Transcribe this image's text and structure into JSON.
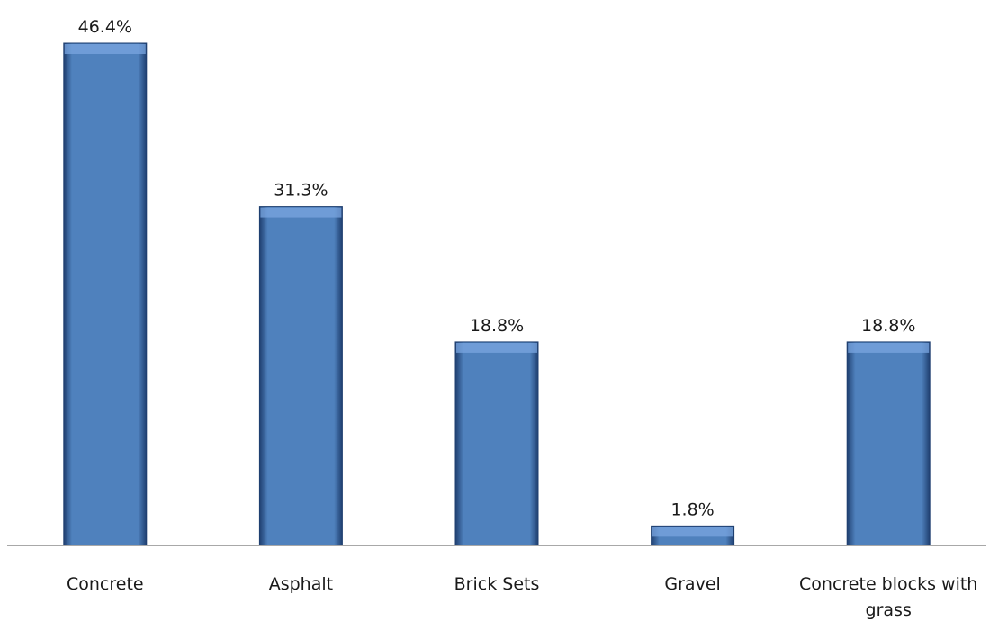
{
  "chart_data": {
    "type": "bar",
    "categories": [
      "Concrete",
      "Asphalt",
      "Brick Sets",
      "Gravel",
      "Concrete blocks with grass"
    ],
    "category_lines": [
      [
        "Concrete"
      ],
      [
        "Asphalt"
      ],
      [
        "Brick Sets"
      ],
      [
        "Gravel"
      ],
      [
        "Concrete blocks with",
        "grass"
      ]
    ],
    "values": [
      46.4,
      31.3,
      18.8,
      1.8,
      18.8
    ],
    "value_labels": [
      "46.4%",
      "31.3%",
      "18.8%",
      "1.8%",
      "18.8%"
    ],
    "title": "",
    "xlabel": "",
    "ylabel": "",
    "ylim": [
      0,
      46.4
    ],
    "grid": false,
    "legend": "none",
    "colors": {
      "bar": "#4f81bd",
      "bar_light": "#7aa6e0",
      "bar_dark": "#1f3f70",
      "axis": "#8c8c8c"
    }
  }
}
